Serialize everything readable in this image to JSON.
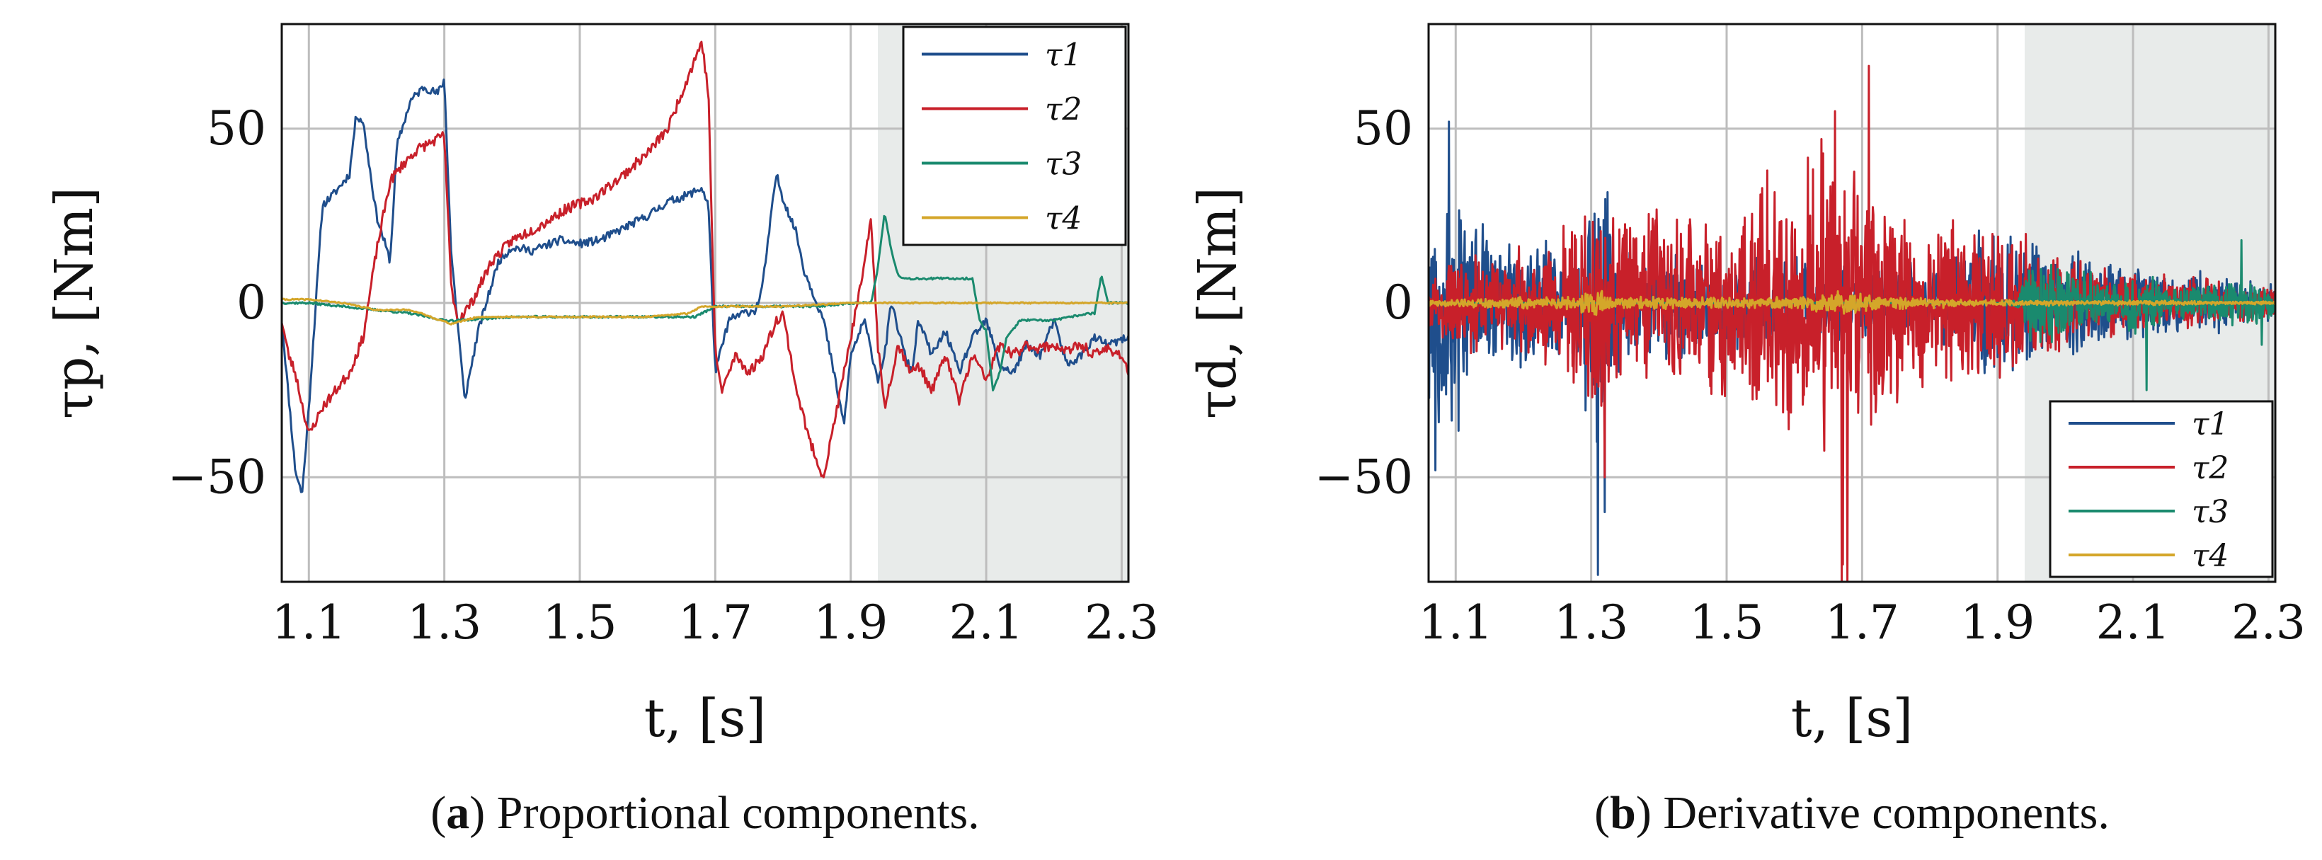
{
  "figure": {
    "captions": [
      {
        "open": "(",
        "letter": "a",
        "close": ")",
        "text": " Proportional components."
      },
      {
        "open": "(",
        "letter": "b",
        "close": ")",
        "text": " Derivative components."
      }
    ]
  },
  "chart_data": [
    {
      "id": "proportional",
      "type": "line",
      "title": "",
      "xlabel": "t, [s]",
      "ylabel": "τp, [Nm]",
      "xlim": [
        1.06,
        2.31
      ],
      "ylim": [
        -80,
        80
      ],
      "xticks": [
        1.1,
        1.3,
        1.5,
        1.7,
        1.9,
        2.1,
        2.3
      ],
      "xtick_labels": [
        "1.1",
        "1.3",
        "1.5",
        "1.7",
        "1.9",
        "2.1",
        "2.3"
      ],
      "yticks": [
        -50,
        0,
        50
      ],
      "ytick_labels": [
        "−50",
        "0",
        "50"
      ],
      "grid": true,
      "shaded_region": {
        "x0": 1.94,
        "x1": 2.31
      },
      "legend": {
        "position": "top-right"
      },
      "series": [
        {
          "name": "τ1",
          "color": "#1f4e8c",
          "noise": 1.2,
          "seed": 11,
          "x": [
            1.06,
            1.08,
            1.09,
            1.1,
            1.12,
            1.14,
            1.16,
            1.17,
            1.18,
            1.2,
            1.22,
            1.23,
            1.25,
            1.27,
            1.29,
            1.3,
            1.31,
            1.33,
            1.35,
            1.38,
            1.4,
            1.43,
            1.47,
            1.5,
            1.53,
            1.57,
            1.6,
            1.63,
            1.66,
            1.68,
            1.69,
            1.7,
            1.72,
            1.74,
            1.76,
            1.77,
            1.79,
            1.8,
            1.82,
            1.83,
            1.84,
            1.86,
            1.88,
            1.89,
            1.9,
            1.92,
            1.94,
            1.95,
            1.96,
            1.98,
            1.99,
            2.0,
            2.02,
            2.04,
            2.06,
            2.08,
            2.1,
            2.12,
            2.14,
            2.16,
            2.18,
            2.2,
            2.22,
            2.24,
            2.26,
            2.28,
            2.31
          ],
          "y": [
            -5,
            -48,
            -55,
            -30,
            28,
            32,
            37,
            54,
            52,
            25,
            12,
            45,
            58,
            62,
            60,
            64,
            15,
            -28,
            -8,
            12,
            16,
            15,
            18,
            17,
            18,
            22,
            25,
            29,
            31,
            33,
            28,
            -20,
            -5,
            -3,
            -2,
            5,
            37,
            30,
            20,
            10,
            5,
            -5,
            -25,
            -35,
            -15,
            -5,
            -22,
            -15,
            0,
            -15,
            -20,
            -5,
            -15,
            -8,
            -20,
            -10,
            -5,
            -18,
            -20,
            -12,
            -15,
            -5,
            -18,
            -15,
            -10,
            -12,
            -10
          ]
        },
        {
          "name": "τ2",
          "color": "#c8202a",
          "noise": 1.5,
          "seed": 23,
          "x": [
            1.06,
            1.07,
            1.08,
            1.1,
            1.12,
            1.14,
            1.16,
            1.18,
            1.2,
            1.22,
            1.24,
            1.26,
            1.28,
            1.3,
            1.31,
            1.32,
            1.34,
            1.37,
            1.4,
            1.44,
            1.48,
            1.52,
            1.56,
            1.6,
            1.63,
            1.65,
            1.67,
            1.68,
            1.69,
            1.7,
            1.71,
            1.73,
            1.75,
            1.77,
            1.79,
            1.8,
            1.82,
            1.84,
            1.86,
            1.88,
            1.9,
            1.92,
            1.93,
            1.94,
            1.95,
            1.97,
            1.99,
            2.0,
            2.02,
            2.04,
            2.06,
            2.08,
            2.1,
            2.12,
            2.14,
            2.16,
            2.18,
            2.2,
            2.22,
            2.24,
            2.26,
            2.28,
            2.3,
            2.31
          ],
          "y": [
            -5,
            -15,
            -20,
            -38,
            -30,
            -25,
            -20,
            -10,
            15,
            35,
            40,
            44,
            46,
            48,
            5,
            -5,
            0,
            12,
            18,
            22,
            27,
            30,
            36,
            43,
            50,
            60,
            70,
            75,
            60,
            -15,
            -25,
            -15,
            -20,
            -15,
            -5,
            -3,
            -25,
            -40,
            -50,
            -30,
            -10,
            10,
            25,
            -12,
            -30,
            -12,
            -20,
            -18,
            -25,
            -15,
            -28,
            -15,
            -22,
            -12,
            -15,
            -12,
            -13,
            -12,
            -14,
            -12,
            -15,
            -13,
            -15,
            -20
          ]
        },
        {
          "name": "τ3",
          "color": "#1a8a6e",
          "noise": 0.3,
          "seed": 37,
          "x": [
            1.06,
            1.1,
            1.15,
            1.2,
            1.25,
            1.3,
            1.32,
            1.4,
            1.5,
            1.6,
            1.67,
            1.7,
            1.75,
            1.8,
            1.85,
            1.9,
            1.93,
            1.94,
            1.95,
            1.96,
            1.97,
            1.98,
            2.0,
            2.05,
            2.08,
            2.09,
            2.1,
            2.11,
            2.12,
            2.13,
            2.15,
            2.2,
            2.25,
            2.26,
            2.27,
            2.28,
            2.29,
            2.31
          ],
          "y": [
            0,
            0,
            -1,
            -2,
            -3,
            -5,
            -5,
            -4,
            -4,
            -4,
            -4,
            -1,
            -1,
            -1,
            -1,
            0,
            0,
            10,
            26,
            15,
            8,
            7,
            7,
            7,
            7,
            -5,
            -8,
            -25,
            -20,
            -10,
            -5,
            -5,
            -3,
            -3,
            8,
            0,
            0,
            0
          ]
        },
        {
          "name": "τ4",
          "color": "#d4a62a",
          "noise": 0.2,
          "seed": 41,
          "x": [
            1.06,
            1.1,
            1.15,
            1.2,
            1.25,
            1.28,
            1.31,
            1.35,
            1.4,
            1.5,
            1.6,
            1.66,
            1.68,
            1.7,
            1.8,
            1.9,
            2.0,
            2.1,
            2.2,
            2.31
          ],
          "y": [
            1,
            1,
            0,
            -2,
            -2,
            -4,
            -6,
            -4,
            -4,
            -4,
            -4,
            -3,
            -1,
            -1,
            -1,
            0,
            0,
            0,
            0,
            0
          ]
        }
      ]
    },
    {
      "id": "derivative",
      "type": "line",
      "title": "",
      "xlabel": "t, [s]",
      "ylabel": "τd, [Nm]",
      "xlim": [
        1.06,
        2.31
      ],
      "ylim": [
        -80,
        80
      ],
      "xticks": [
        1.1,
        1.3,
        1.5,
        1.7,
        1.9,
        2.1,
        2.3
      ],
      "xtick_labels": [
        "1.1",
        "1.3",
        "1.5",
        "1.7",
        "1.9",
        "2.1",
        "2.3"
      ],
      "yticks": [
        -50,
        0,
        50
      ],
      "ytick_labels": [
        "−50",
        "0",
        "50"
      ],
      "grid": true,
      "shaded_region": {
        "x0": 1.94,
        "x1": 2.31
      },
      "legend": {
        "position": "bottom-right"
      },
      "series": [
        {
          "name": "τ1",
          "color": "#1f4e8c",
          "seed": 53,
          "env_x": [
            1.06,
            1.08,
            1.1,
            1.12,
            1.2,
            1.28,
            1.3,
            1.32,
            1.34,
            1.4,
            1.5,
            1.6,
            1.7,
            1.8,
            1.9,
            1.95,
            2.0,
            2.1,
            2.2,
            2.31
          ],
          "env_amp": [
            45,
            40,
            50,
            25,
            20,
            22,
            40,
            60,
            22,
            18,
            16,
            15,
            14,
            14,
            25,
            22,
            18,
            12,
            10,
            6
          ],
          "spikes": [
            {
              "x": 1.09,
              "y": 52
            },
            {
              "x": 1.07,
              "y": -48
            },
            {
              "x": 1.31,
              "y": -78
            },
            {
              "x": 1.32,
              "y": -60
            }
          ]
        },
        {
          "name": "τ2",
          "color": "#c8202a",
          "seed": 67,
          "env_x": [
            1.06,
            1.08,
            1.1,
            1.2,
            1.28,
            1.3,
            1.32,
            1.35,
            1.4,
            1.5,
            1.55,
            1.6,
            1.65,
            1.7,
            1.73,
            1.76,
            1.8,
            1.85,
            1.9,
            1.95,
            2.0,
            2.1,
            2.2,
            2.31
          ],
          "env_amp": [
            8,
            12,
            15,
            18,
            25,
            35,
            30,
            25,
            30,
            30,
            35,
            40,
            50,
            45,
            40,
            30,
            30,
            25,
            25,
            20,
            15,
            10,
            8,
            5
          ],
          "spikes": [
            {
              "x": 1.67,
              "y": -80
            },
            {
              "x": 1.672,
              "y": -75
            },
            {
              "x": 1.678,
              "y": -80
            },
            {
              "x": 1.71,
              "y": 68
            },
            {
              "x": 1.64,
              "y": 47
            },
            {
              "x": 1.66,
              "y": 55
            },
            {
              "x": 1.56,
              "y": 38
            },
            {
              "x": 1.32,
              "y": -50
            }
          ]
        },
        {
          "name": "τ3",
          "color": "#1a8a6e",
          "seed": 79,
          "env_x": [
            1.06,
            1.9,
            1.93,
            1.95,
            2.0,
            2.05,
            2.08,
            2.1,
            2.15,
            2.2,
            2.25,
            2.31
          ],
          "env_amp": [
            0,
            0,
            2,
            15,
            12,
            8,
            5,
            12,
            6,
            5,
            8,
            5
          ],
          "spikes": [
            {
              "x": 2.26,
              "y": 18
            },
            {
              "x": 2.29,
              "y": -12
            },
            {
              "x": 2.12,
              "y": -25
            }
          ]
        },
        {
          "name": "τ4",
          "color": "#d4a62a",
          "seed": 91,
          "env_x": [
            1.06,
            1.1,
            1.28,
            1.3,
            1.32,
            1.34,
            1.4,
            1.6,
            1.65,
            1.68,
            1.7,
            1.75,
            1.9,
            2.31
          ],
          "env_amp": [
            1,
            1.5,
            2,
            6,
            3,
            2,
            2,
            2,
            3,
            5,
            3,
            2,
            1,
            0.5
          ],
          "spikes": []
        }
      ]
    }
  ]
}
